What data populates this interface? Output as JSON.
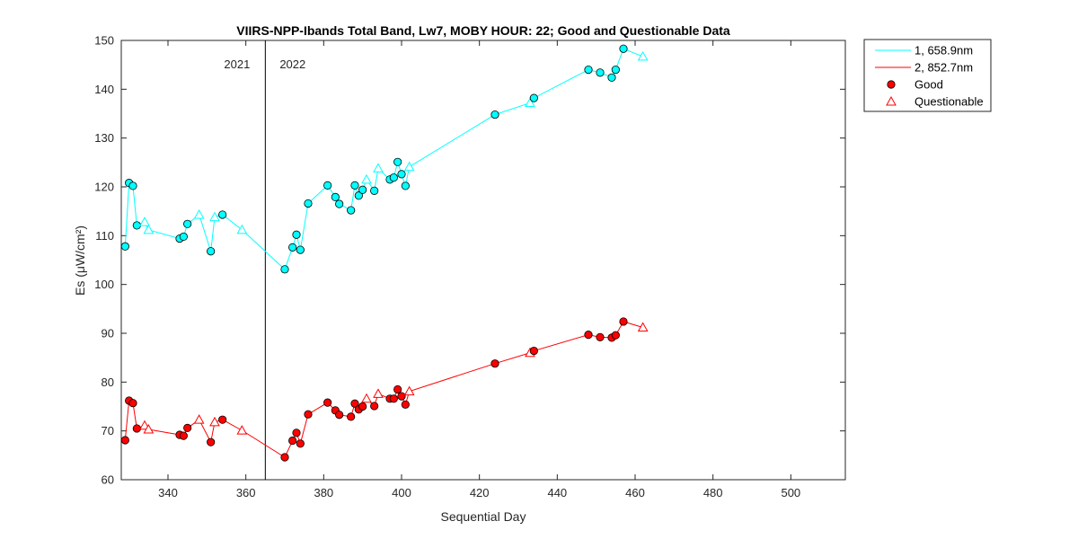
{
  "chart_data": {
    "type": "line",
    "title": "VIIRS-NPP-Ibands Total Band,  Lw7, MOBY HOUR: 22;  Good and Questionable Data",
    "xlabel": "Sequential Day",
    "ylabel": "Es (μW/cm²)",
    "xlim": [
      328,
      514
    ],
    "ylim": [
      60,
      150
    ],
    "xticks": [
      340,
      360,
      380,
      400,
      420,
      440,
      460,
      480,
      500
    ],
    "yticks": [
      60,
      70,
      80,
      90,
      100,
      110,
      120,
      130,
      140,
      150
    ],
    "grid": false,
    "legend_position": "outside-top-right",
    "year_divider": {
      "x": 365,
      "left_label": "2021",
      "right_label": "2022"
    },
    "series": [
      {
        "name": "1, 658.9nm",
        "color": "#00FFFF",
        "x": [
          329,
          330,
          331,
          332,
          334,
          335,
          343,
          344,
          345,
          348,
          351,
          352,
          354,
          359,
          370,
          372,
          373,
          374,
          376,
          381,
          383,
          384,
          387,
          388,
          389,
          390,
          391,
          393,
          394,
          397,
          398,
          399,
          400,
          401,
          402,
          424,
          433,
          434,
          448,
          451,
          454,
          455,
          457,
          462
        ],
        "y": [
          107.8,
          120.8,
          120.2,
          112.1,
          112.8,
          111.2,
          109.4,
          109.8,
          112.4,
          114.3,
          106.8,
          113.8,
          114.3,
          111.2,
          103.1,
          107.6,
          110.2,
          107.1,
          116.6,
          120.3,
          117.9,
          116.5,
          115.2,
          120.3,
          118.2,
          119.4,
          121.5,
          119.2,
          123.8,
          121.5,
          121.9,
          125.1,
          122.6,
          120.2,
          124.1,
          134.8,
          137.2,
          138.2,
          144.0,
          143.4,
          142.4,
          144.0,
          148.3,
          146.7
        ],
        "quality": [
          "G",
          "G",
          "G",
          "G",
          "Q",
          "Q",
          "G",
          "G",
          "G",
          "Q",
          "G",
          "Q",
          "G",
          "Q",
          "G",
          "G",
          "G",
          "G",
          "G",
          "G",
          "G",
          "G",
          "G",
          "G",
          "G",
          "G",
          "Q",
          "G",
          "Q",
          "G",
          "G",
          "G",
          "G",
          "G",
          "Q",
          "G",
          "Q",
          "G",
          "G",
          "G",
          "G",
          "G",
          "G",
          "Q"
        ]
      },
      {
        "name": "2, 852.7nm",
        "color": "#FF0000",
        "x": [
          329,
          330,
          331,
          332,
          334,
          335,
          343,
          344,
          345,
          348,
          351,
          352,
          354,
          359,
          370,
          372,
          373,
          374,
          376,
          381,
          383,
          384,
          387,
          388,
          389,
          390,
          391,
          393,
          394,
          397,
          398,
          399,
          400,
          401,
          402,
          424,
          433,
          434,
          448,
          451,
          454,
          455,
          457,
          462
        ],
        "y": [
          68.1,
          76.2,
          75.7,
          70.5,
          71.1,
          70.3,
          69.2,
          69.0,
          70.6,
          72.3,
          67.7,
          71.8,
          72.3,
          70.1,
          64.6,
          68.0,
          69.6,
          67.4,
          73.4,
          75.8,
          74.2,
          73.3,
          72.9,
          75.6,
          74.4,
          75.0,
          76.6,
          75.1,
          77.6,
          76.6,
          76.6,
          78.5,
          77.1,
          75.4,
          78.1,
          83.8,
          86.0,
          86.4,
          89.7,
          89.2,
          89.1,
          89.6,
          92.4,
          91.2
        ],
        "quality": [
          "G",
          "G",
          "G",
          "G",
          "Q",
          "Q",
          "G",
          "G",
          "G",
          "Q",
          "G",
          "Q",
          "G",
          "Q",
          "G",
          "G",
          "G",
          "G",
          "G",
          "G",
          "G",
          "G",
          "G",
          "G",
          "G",
          "G",
          "Q",
          "G",
          "Q",
          "G",
          "G",
          "G",
          "G",
          "G",
          "Q",
          "G",
          "Q",
          "G",
          "G",
          "G",
          "G",
          "G",
          "G",
          "Q"
        ]
      }
    ],
    "legend": [
      {
        "label": "1, 658.9nm",
        "symbol": "line",
        "color": "#00FFFF"
      },
      {
        "label": "2, 852.7nm",
        "symbol": "line",
        "color": "#FF0000"
      },
      {
        "label": "Good",
        "symbol": "circle",
        "color": "#FF0000"
      },
      {
        "label": "Questionable",
        "symbol": "triangle",
        "color": "#FF0000"
      }
    ]
  }
}
